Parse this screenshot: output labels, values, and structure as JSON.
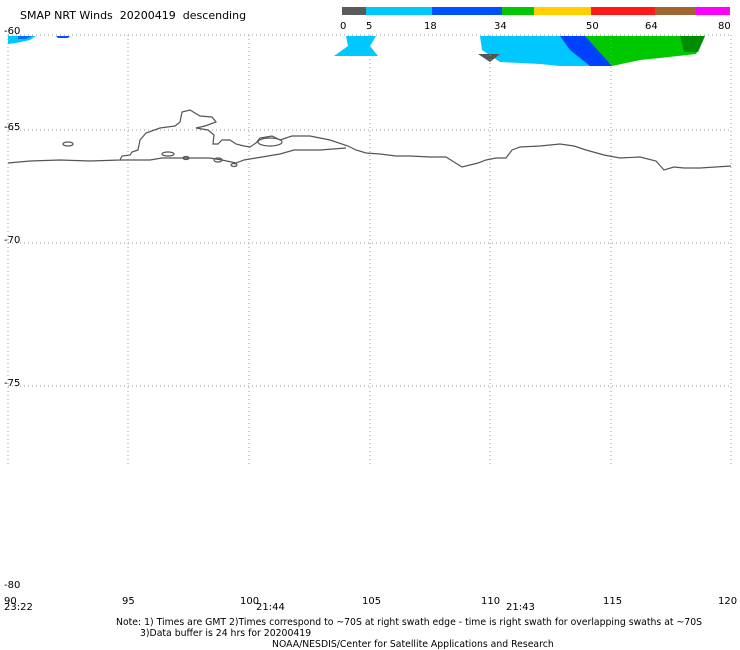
{
  "header": {
    "title": "SMAP NRT Winds",
    "date": "20200419",
    "pass": "descending"
  },
  "colorbar": {
    "tick_labels": [
      "0",
      "5",
      "18",
      "34",
      "50",
      "64",
      "80"
    ],
    "colors": [
      "#5a5a5a",
      "#00c8ff",
      "#0050ff",
      "#00c800",
      "#ffd000",
      "#ff1818",
      "#a06432",
      "#ff00ff"
    ]
  },
  "map": {
    "lat_labels": [
      "-60",
      "-65",
      "-70",
      "-75",
      "-80"
    ],
    "lon_labels": [
      "90",
      "95",
      "100",
      "105",
      "110",
      "115",
      "120"
    ],
    "time_labels": [
      "23:22",
      "21:44",
      "21:43"
    ],
    "colors": {
      "coast": "#555555",
      "grid": "#999999",
      "wind_light": "#00c8ff",
      "wind_blue": "#0040ff",
      "wind_green": "#00c800",
      "wind_gray": "#555555"
    }
  },
  "notes": {
    "line1": "Note: 1) Times are GMT 2)Times correspond to ~70S at right swath edge - time is right swath for overlapping swaths at ~70S",
    "line2": "3)Data buffer is 24 hrs for 20200419",
    "line3": "NOAA/NESDIS/Center for Satellite Applications and Research"
  }
}
